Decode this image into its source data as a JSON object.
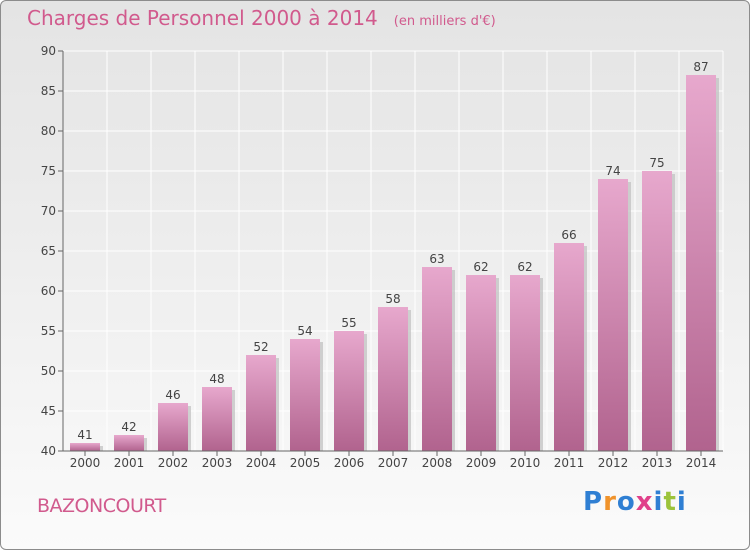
{
  "title": "Charges de Personnel 2000 à 2014",
  "subtitle": "(en milliers d'€)",
  "place_name": "BAZONCOURT",
  "logo": {
    "text": "Proxiti",
    "colors": [
      "#2f7fd3",
      "#f0932b",
      "#2f7fd3",
      "#e0408a",
      "#2f7fd3",
      "#9cc33b",
      "#2f7fd3"
    ]
  },
  "colors": {
    "title": "#d15a8d",
    "bar_top": "#e7a8cd",
    "bar_bottom": "#b1638e",
    "bar_shadow": "#bfbfbf"
  },
  "chart_data": {
    "type": "bar",
    "categories": [
      "2000",
      "2001",
      "2002",
      "2003",
      "2004",
      "2005",
      "2006",
      "2007",
      "2008",
      "2009",
      "2010",
      "2011",
      "2012",
      "2013",
      "2014"
    ],
    "values": [
      41,
      42,
      46,
      48,
      52,
      54,
      55,
      58,
      63,
      62,
      62,
      66,
      74,
      75,
      87
    ],
    "ylim": [
      40,
      90
    ],
    "yticks": [
      40,
      45,
      50,
      55,
      60,
      65,
      70,
      75,
      80,
      85,
      90
    ],
    "grid": true,
    "title": "Charges de Personnel 2000 à 2014",
    "subtitle": "(en milliers d'€)",
    "xlabel": "",
    "ylabel": ""
  }
}
